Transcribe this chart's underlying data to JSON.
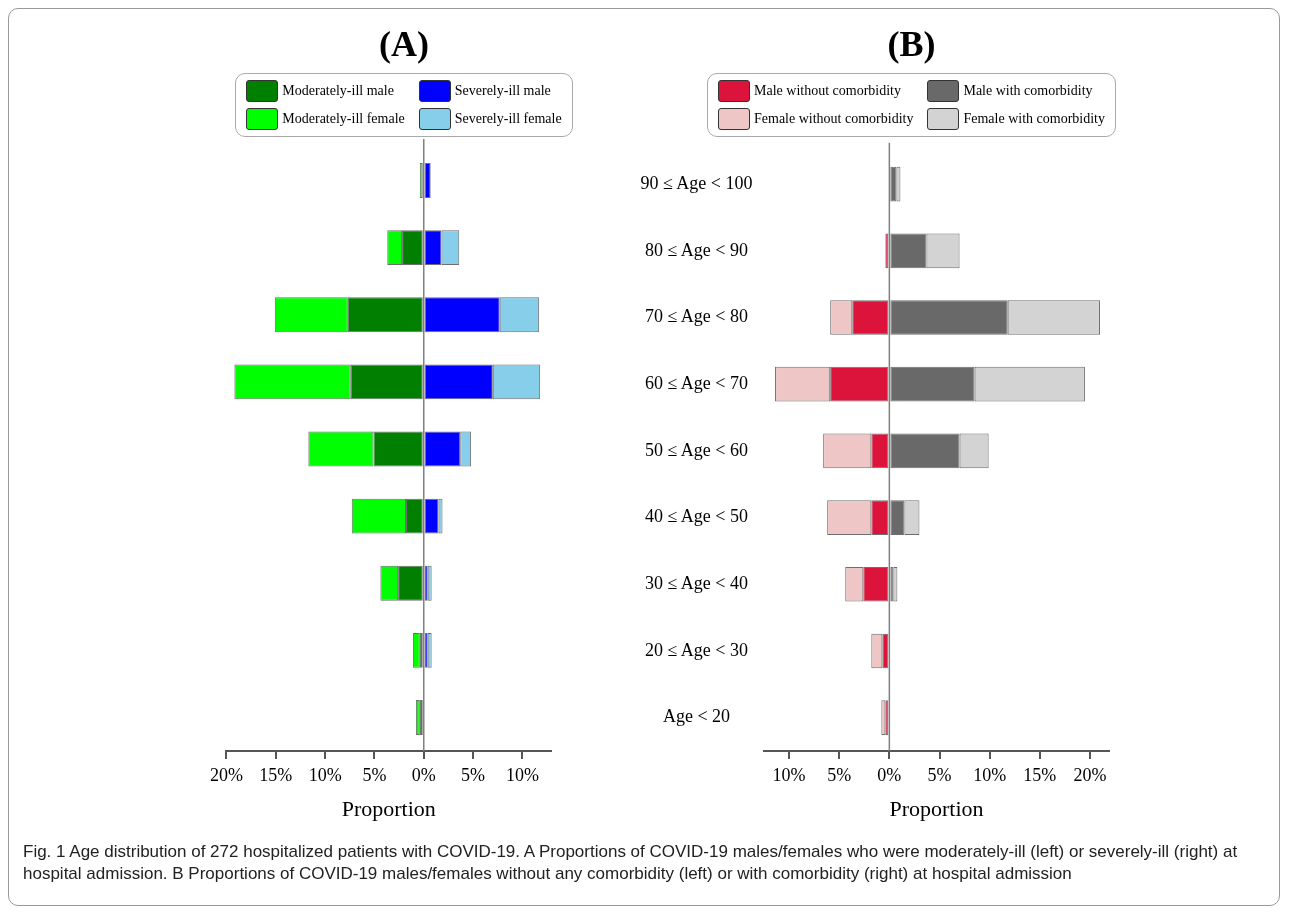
{
  "chart_data": [
    {
      "type": "bar",
      "title": "(A)",
      "xlabel": "Proportion",
      "orientation": "horizontal",
      "stacked": true,
      "legend": "top",
      "tick_labels": "x",
      "xlim": [
        -20,
        12.9
      ],
      "xticks": [
        {
          "value": -20,
          "label": "20%"
        },
        {
          "value": -15,
          "label": "15%"
        },
        {
          "value": -10,
          "label": "10%"
        },
        {
          "value": -5,
          "label": "5%"
        },
        {
          "value": 0,
          "label": "0%"
        },
        {
          "value": 5,
          "label": "5%"
        },
        {
          "value": 10,
          "label": "10%"
        }
      ],
      "ref_lines": [
        {
          "axis": "x",
          "value": 0,
          "color": "#808080"
        }
      ],
      "series": [
        {
          "name": "Moderately-ill male",
          "color": "#007f00",
          "values": [
            0,
            -2.2,
            -7.7,
            -7.4,
            -5.1,
            -1.8,
            -2.6,
            -0.4,
            -0.4
          ]
        },
        {
          "name": "Moderately-ill female",
          "color": "#00ff00",
          "values": [
            -0.4,
            -1.5,
            -7.4,
            -11.8,
            -6.6,
            -5.5,
            -1.8,
            -0.7,
            -0.4
          ]
        },
        {
          "name": "Severely-ill male",
          "color": "#0000ff",
          "values": [
            0.7,
            1.8,
            7.7,
            7.0,
            3.7,
            1.5,
            0.4,
            0.4,
            0
          ]
        },
        {
          "name": "Severely-ill female",
          "color": "#87ceeb",
          "values": [
            0,
            1.8,
            4.0,
            4.8,
            1.1,
            0.4,
            0.4,
            0.4,
            0
          ]
        }
      ],
      "annotations": [
        "Fig. 1 Age distribution of 272 hospitalized patients with COVID-19. A Proportions of COVID-19 males/females who were moderately-ill (left) or severely-ill (right) at hospital admission. B Proportions of COVID-19 males/females without any comorbidity (left) or with comorbidity (right) at hospital admission"
      ]
    },
    {
      "type": "bar",
      "title": "(B)",
      "xlabel": "Proportion",
      "orientation": "horizontal",
      "stacked": true,
      "legend": "top",
      "categories": [
        "90 ≤ Age < 100",
        "80 ≤ Age < 90",
        "70 ≤ Age < 80",
        "60 ≤ Age < 70",
        "50 ≤ Age < 60",
        "40 ≤ Age < 50",
        "30 ≤ Age < 40",
        "20 ≤ Age < 30",
        "Age < 20"
      ],
      "xlim": [
        -12.5,
        21.9
      ],
      "xticks": [
        {
          "value": -10,
          "label": "10%"
        },
        {
          "value": -5,
          "label": "5%"
        },
        {
          "value": 0,
          "label": "0%"
        },
        {
          "value": 5,
          "label": "5%"
        },
        {
          "value": 10,
          "label": "10%"
        },
        {
          "value": 15,
          "label": "15%"
        },
        {
          "value": 20,
          "label": "20%"
        }
      ],
      "ref_lines": [
        {
          "axis": "x",
          "value": 0,
          "color": "#808080"
        }
      ],
      "series": [
        {
          "name": "Male without comorbidity",
          "color": "#dc143c",
          "values": [
            0,
            -0.4,
            -3.7,
            -5.9,
            -1.8,
            -1.8,
            -2.6,
            -0.7,
            -0.4
          ]
        },
        {
          "name": "Female without comorbidity",
          "color": "#efc6c6",
          "values": [
            0,
            0,
            -2.2,
            -5.5,
            -4.8,
            -4.4,
            -1.8,
            -1.1,
            -0.4
          ]
        },
        {
          "name": "Male with comorbidity",
          "color": "#696969",
          "values": [
            0.7,
            3.7,
            11.8,
            8.5,
            7.0,
            1.5,
            0.4,
            0,
            0
          ]
        },
        {
          "name": "Female with comorbidity",
          "color": "#d3d3d3",
          "values": [
            0.4,
            3.3,
            9.2,
            11.0,
            2.9,
            1.5,
            0.4,
            0,
            0
          ]
        }
      ]
    }
  ]
}
